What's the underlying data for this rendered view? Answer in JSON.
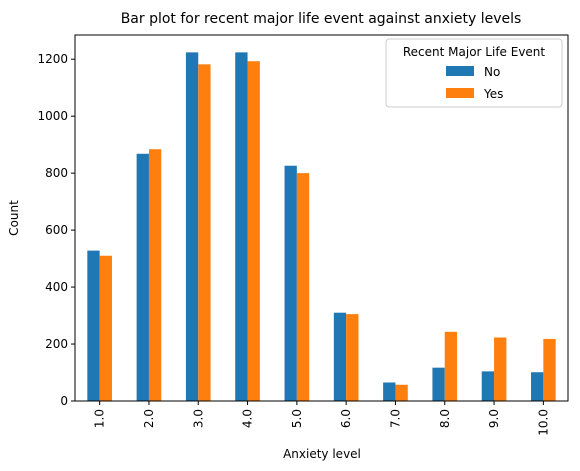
{
  "chart_data": {
    "type": "bar",
    "title": "Bar plot for recent major life event against anxiety levels",
    "xlabel": "Anxiety level",
    "ylabel": "Count",
    "categories": [
      "1.0",
      "2.0",
      "3.0",
      "4.0",
      "5.0",
      "6.0",
      "7.0",
      "8.0",
      "9.0",
      "10.0"
    ],
    "series": [
      {
        "name": "No",
        "color": "#1f77b4",
        "values": [
          528,
          868,
          1224,
          1224,
          826,
          310,
          65,
          117,
          104,
          101
        ]
      },
      {
        "name": "Yes",
        "color": "#ff7f0e",
        "values": [
          510,
          884,
          1182,
          1193,
          800,
          305,
          57,
          243,
          223,
          218
        ]
      }
    ],
    "ylim": [
      0,
      1285
    ],
    "yticks": [
      0,
      200,
      400,
      600,
      800,
      1000,
      1200
    ],
    "legend": {
      "title": "Recent Major Life Event",
      "placement": "top-right"
    },
    "grid": false
  }
}
